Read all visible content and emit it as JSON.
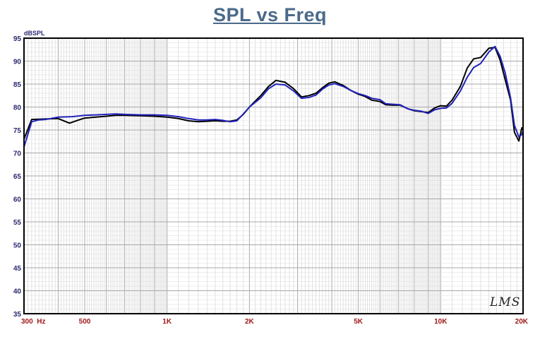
{
  "chart_data": {
    "type": "line",
    "title": "SPL vs Freq",
    "ylabel": "dBSPL",
    "xlabel": "",
    "x_scale": "log",
    "xlim": [
      300,
      20000
    ],
    "ylim": [
      35,
      95
    ],
    "y_ticks": [
      95,
      90,
      85,
      80,
      75,
      70,
      65,
      60,
      55,
      50,
      45,
      40,
      35
    ],
    "x_tick_labels": [
      {
        "value": 300,
        "label": "300  Hz"
      },
      {
        "value": 500,
        "label": "500"
      },
      {
        "value": 1000,
        "label": "1K"
      },
      {
        "value": 2000,
        "label": "2K"
      },
      {
        "value": 5000,
        "label": "5K"
      },
      {
        "value": 10000,
        "label": "10K"
      },
      {
        "value": 20000,
        "label": "20K"
      }
    ],
    "grid": true,
    "series": [
      {
        "color": "#000000",
        "points": [
          [
            300,
            73
          ],
          [
            320,
            77.3
          ],
          [
            360,
            77.4
          ],
          [
            400,
            77.5
          ],
          [
            440,
            76.5
          ],
          [
            470,
            77.1
          ],
          [
            500,
            77.6
          ],
          [
            550,
            77.8
          ],
          [
            600,
            78
          ],
          [
            650,
            78.2
          ],
          [
            700,
            78.2
          ],
          [
            800,
            78.1
          ],
          [
            900,
            78
          ],
          [
            1000,
            77.8
          ],
          [
            1100,
            77.5
          ],
          [
            1200,
            77
          ],
          [
            1300,
            76.8
          ],
          [
            1400,
            76.9
          ],
          [
            1500,
            77
          ],
          [
            1600,
            76.9
          ],
          [
            1700,
            76.9
          ],
          [
            1800,
            77.2
          ],
          [
            1900,
            78.4
          ],
          [
            2000,
            80
          ],
          [
            2200,
            82.5
          ],
          [
            2350,
            84.5
          ],
          [
            2500,
            85.8
          ],
          [
            2700,
            85.4
          ],
          [
            2900,
            84
          ],
          [
            3100,
            82.2
          ],
          [
            3300,
            82.5
          ],
          [
            3500,
            83
          ],
          [
            3700,
            84.2
          ],
          [
            3900,
            85.2
          ],
          [
            4100,
            85.5
          ],
          [
            4400,
            84.7
          ],
          [
            4700,
            83.6
          ],
          [
            5000,
            82.8
          ],
          [
            5300,
            82.3
          ],
          [
            5600,
            81.5
          ],
          [
            6000,
            81.2
          ],
          [
            6300,
            80.5
          ],
          [
            6700,
            80.4
          ],
          [
            7100,
            80.4
          ],
          [
            7600,
            79.6
          ],
          [
            8000,
            79.2
          ],
          [
            8500,
            79
          ],
          [
            9000,
            78.8
          ],
          [
            9500,
            79.8
          ],
          [
            10000,
            80.3
          ],
          [
            10500,
            80.2
          ],
          [
            11000,
            81.5
          ],
          [
            11800,
            84.5
          ],
          [
            12500,
            88.5
          ],
          [
            13200,
            90.5
          ],
          [
            14000,
            90.8
          ],
          [
            15000,
            92.8
          ],
          [
            15800,
            93
          ],
          [
            16500,
            90.2
          ],
          [
            17200,
            86
          ],
          [
            18000,
            81.5
          ],
          [
            18600,
            74.5
          ],
          [
            19300,
            72.6
          ],
          [
            19800,
            75.5
          ],
          [
            20000,
            75
          ]
        ]
      },
      {
        "color": "#2222bb",
        "points": [
          [
            300,
            71.3
          ],
          [
            320,
            76.8
          ],
          [
            340,
            77.2
          ],
          [
            360,
            77.3
          ],
          [
            400,
            77.8
          ],
          [
            450,
            77.9
          ],
          [
            500,
            78.2
          ],
          [
            550,
            78.3
          ],
          [
            600,
            78.4
          ],
          [
            650,
            78.5
          ],
          [
            700,
            78.4
          ],
          [
            800,
            78.3
          ],
          [
            900,
            78.3
          ],
          [
            1000,
            78.2
          ],
          [
            1100,
            77.9
          ],
          [
            1200,
            77.5
          ],
          [
            1300,
            77.2
          ],
          [
            1400,
            77.2
          ],
          [
            1500,
            77.3
          ],
          [
            1600,
            77.1
          ],
          [
            1700,
            76.8
          ],
          [
            1800,
            77
          ],
          [
            1900,
            78.5
          ],
          [
            2000,
            80
          ],
          [
            2200,
            82
          ],
          [
            2350,
            84
          ],
          [
            2500,
            85
          ],
          [
            2700,
            84.8
          ],
          [
            2900,
            83.5
          ],
          [
            3100,
            81.9
          ],
          [
            3300,
            82.1
          ],
          [
            3500,
            82.6
          ],
          [
            3700,
            83.9
          ],
          [
            3900,
            84.8
          ],
          [
            4100,
            85.1
          ],
          [
            4400,
            84.5
          ],
          [
            4700,
            83.6
          ],
          [
            5000,
            82.9
          ],
          [
            5300,
            82.5
          ],
          [
            5600,
            81.9
          ],
          [
            6000,
            81.6
          ],
          [
            6300,
            80.7
          ],
          [
            6700,
            80.6
          ],
          [
            7100,
            80.5
          ],
          [
            7600,
            79.6
          ],
          [
            8000,
            79.3
          ],
          [
            8500,
            79.1
          ],
          [
            9000,
            78.6
          ],
          [
            9500,
            79.4
          ],
          [
            10000,
            79.7
          ],
          [
            10500,
            79.8
          ],
          [
            11000,
            80.8
          ],
          [
            11800,
            83.5
          ],
          [
            12500,
            86.5
          ],
          [
            13200,
            88.6
          ],
          [
            14000,
            89.5
          ],
          [
            15000,
            92
          ],
          [
            15800,
            93.2
          ],
          [
            16500,
            91
          ],
          [
            17200,
            87.5
          ],
          [
            18000,
            82
          ],
          [
            18600,
            76
          ],
          [
            19300,
            73.5
          ],
          [
            19800,
            74
          ],
          [
            20000,
            74.8
          ]
        ]
      }
    ]
  },
  "watermark_text": "LMS"
}
